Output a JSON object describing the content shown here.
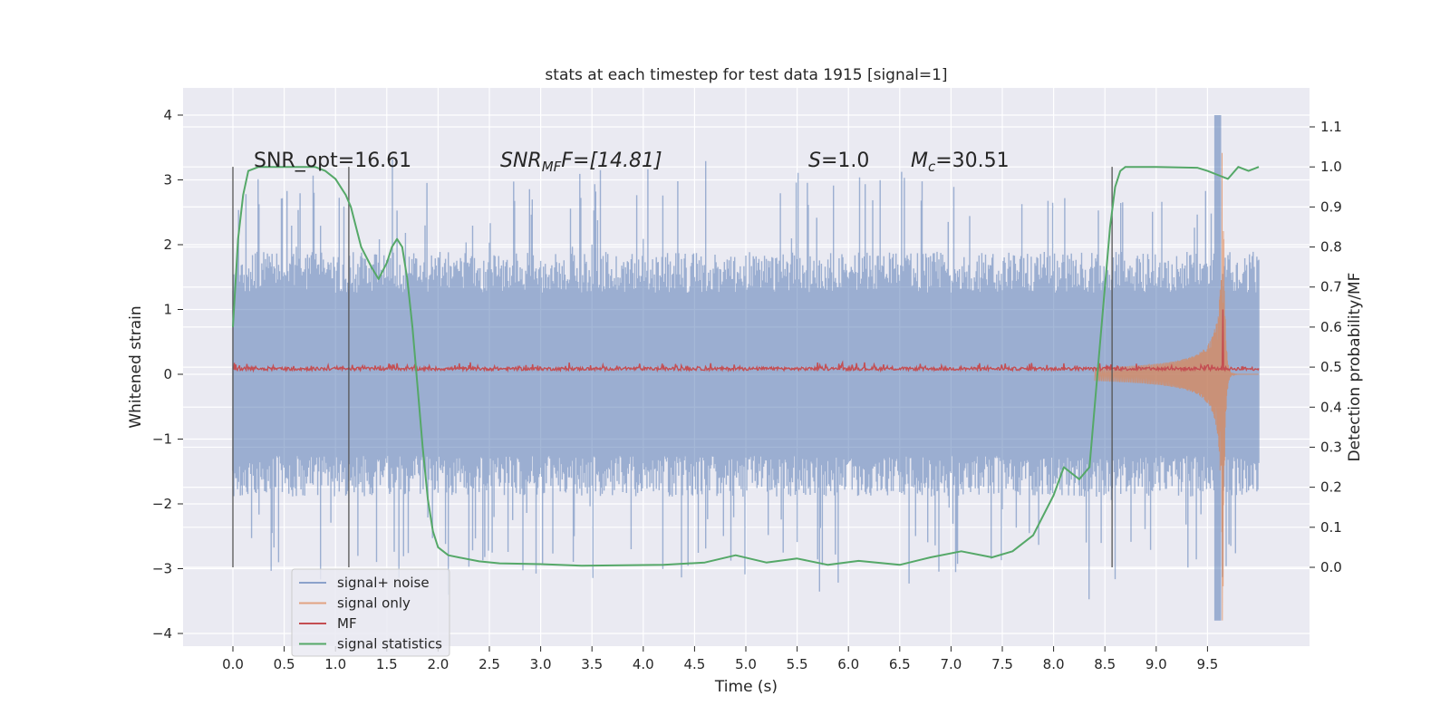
{
  "chart_data": {
    "type": "line",
    "title": "stats at each timestep for test data 1915 [signal=1]",
    "xlabel": "Time (s)",
    "ylabel": "Whitened strain",
    "y2label": "Detection probability/MF",
    "xlim": [
      -0.5,
      10.5
    ],
    "ylim": [
      -4.2,
      4.4
    ],
    "y2lim": [
      -0.18,
      1.2
    ],
    "xticks": [
      "0.0",
      "0.5",
      "1.0",
      "1.5",
      "2.0",
      "2.5",
      "3.0",
      "3.5",
      "4.0",
      "4.5",
      "5.0",
      "5.5",
      "6.0",
      "6.5",
      "7.0",
      "7.5",
      "8.0",
      "8.5",
      "9.0",
      "9.5"
    ],
    "yticks": [
      "4",
      "3",
      "2",
      "1",
      "0",
      "−1",
      "−2",
      "−3",
      "−4"
    ],
    "y2ticks": [
      "1.1",
      "1.0",
      "0.9",
      "0.8",
      "0.7",
      "0.6",
      "0.5",
      "0.4",
      "0.3",
      "0.2",
      "0.1",
      "0.0"
    ],
    "grid": true,
    "legend_position": "lower-left",
    "annotations": {
      "snr_opt": "SNR_opt=16.61",
      "snr_mf_sym": "SNR",
      "snr_mf_sub": "MF",
      "snr_mf_rest": "F=[14.81]",
      "s_sym": "S",
      "s_rest": "=1.0",
      "mc_sym": "M",
      "mc_sub": "c",
      "mc_rest": "=30.51"
    },
    "vertical_lines_x": [
      0.0,
      1.13,
      8.57
    ],
    "series": [
      {
        "name": "signal+ noise",
        "color": "#4c72b0",
        "envelope": {
          "x": [
            0.0,
            9.6,
            9.65,
            9.7,
            10.0
          ],
          "typical_abs": 1.8,
          "peak_abs": 4.0
        }
      },
      {
        "name": "signal only",
        "color": "#dd8452",
        "chirp": {
          "start": 8.4,
          "merger": 9.65,
          "peak_abs": 3.8
        }
      },
      {
        "name": "MF",
        "color": "#c44e52",
        "baseline": 0.08,
        "spike": {
          "x": 9.65,
          "y": 1.0
        }
      },
      {
        "name": "signal statistics",
        "color": "#55a868",
        "axis": "right",
        "x": [
          0.0,
          0.05,
          0.1,
          0.15,
          0.25,
          0.4,
          0.6,
          0.8,
          0.9,
          1.0,
          1.1,
          1.15,
          1.25,
          1.35,
          1.42,
          1.5,
          1.55,
          1.6,
          1.65,
          1.7,
          1.75,
          1.8,
          1.85,
          1.9,
          1.95,
          2.0,
          2.1,
          2.2,
          2.4,
          2.6,
          3.0,
          3.4,
          3.8,
          4.2,
          4.6,
          4.9,
          5.2,
          5.5,
          5.8,
          6.1,
          6.5,
          6.8,
          7.1,
          7.4,
          7.6,
          7.8,
          8.0,
          8.1,
          8.15,
          8.25,
          8.35,
          8.45,
          8.55,
          8.6,
          8.65,
          8.7,
          8.8,
          9.0,
          9.4,
          9.5,
          9.6,
          9.7,
          9.8,
          9.9,
          10.0
        ],
        "y": [
          0.6,
          0.82,
          0.93,
          0.99,
          1.0,
          1.0,
          1.0,
          1.0,
          0.99,
          0.97,
          0.93,
          0.9,
          0.8,
          0.75,
          0.72,
          0.76,
          0.8,
          0.82,
          0.8,
          0.72,
          0.6,
          0.45,
          0.3,
          0.17,
          0.09,
          0.05,
          0.03,
          0.025,
          0.015,
          0.01,
          0.008,
          0.004,
          0.005,
          0.006,
          0.012,
          0.03,
          0.012,
          0.022,
          0.006,
          0.016,
          0.006,
          0.025,
          0.04,
          0.025,
          0.04,
          0.08,
          0.18,
          0.25,
          0.24,
          0.22,
          0.25,
          0.55,
          0.85,
          0.95,
          0.99,
          1.0,
          1.0,
          1.0,
          0.998,
          0.99,
          0.98,
          0.97,
          1.0,
          0.99,
          1.0
        ]
      }
    ]
  }
}
